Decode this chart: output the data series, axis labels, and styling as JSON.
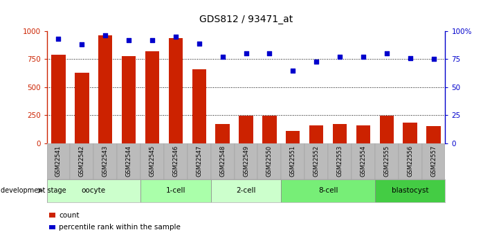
{
  "title": "GDS812 / 93471_at",
  "samples": [
    "GSM22541",
    "GSM22542",
    "GSM22543",
    "GSM22544",
    "GSM22545",
    "GSM22546",
    "GSM22547",
    "GSM22548",
    "GSM22549",
    "GSM22550",
    "GSM22551",
    "GSM22552",
    "GSM22553",
    "GSM22554",
    "GSM22555",
    "GSM22556",
    "GSM22557"
  ],
  "counts": [
    790,
    630,
    960,
    775,
    820,
    940,
    660,
    170,
    245,
    245,
    110,
    160,
    170,
    160,
    245,
    185,
    155
  ],
  "percentiles": [
    93,
    88,
    96,
    92,
    92,
    95,
    89,
    77,
    80,
    80,
    65,
    73,
    77,
    77,
    80,
    76,
    75
  ],
  "bar_color": "#cc2200",
  "dot_color": "#0000cc",
  "ylim_left": [
    0,
    1000
  ],
  "ylim_right": [
    0,
    100
  ],
  "yticks_left": [
    0,
    250,
    500,
    750,
    1000
  ],
  "yticks_right": [
    0,
    25,
    50,
    75,
    100
  ],
  "ytick_labels_right": [
    "0",
    "25",
    "50",
    "75",
    "100%"
  ],
  "grid_values": [
    250,
    500,
    750
  ],
  "stages": [
    {
      "label": "oocyte",
      "start": 0,
      "end": 3,
      "color": "#ccffcc"
    },
    {
      "label": "1-cell",
      "start": 4,
      "end": 6,
      "color": "#aaffaa"
    },
    {
      "label": "2-cell",
      "start": 7,
      "end": 9,
      "color": "#ccffcc"
    },
    {
      "label": "8-cell",
      "start": 10,
      "end": 13,
      "color": "#77ee77"
    },
    {
      "label": "blastocyst",
      "start": 14,
      "end": 16,
      "color": "#44cc44"
    }
  ],
  "stage_label": "development stage",
  "legend_count_label": "count",
  "legend_percentile_label": "percentile rank within the sample",
  "tick_bg_color": "#bbbbbb",
  "plot_bg_color": "#ffffff"
}
